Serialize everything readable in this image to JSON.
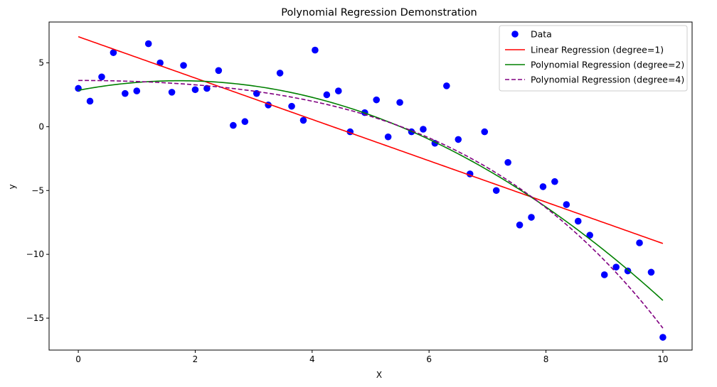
{
  "chart_data": {
    "type": "scatter+line",
    "title": "Polynomial Regression Demonstration",
    "xlabel": "X",
    "ylabel": "y",
    "xlim": [
      -0.5,
      10.5
    ],
    "ylim": [
      -17.5,
      8.2
    ],
    "xticks": [
      0,
      2,
      4,
      6,
      8,
      10
    ],
    "xtick_labels": [
      "0",
      "2",
      "4",
      "6",
      "8",
      "10"
    ],
    "yticks": [
      5,
      0,
      -5,
      -10,
      -15
    ],
    "ytick_labels": [
      "5",
      "0",
      "−5",
      "−10",
      "−15"
    ],
    "grid": false,
    "legend_position": "top-right",
    "scatter": {
      "name": "Data",
      "color": "#0000ff",
      "x": [
        0,
        0.2,
        0.4,
        0.6,
        0.8,
        1.0,
        1.2,
        1.4,
        1.6,
        1.8,
        2.0,
        2.2,
        2.4,
        2.65,
        2.85,
        3.05,
        3.25,
        3.45,
        3.65,
        3.85,
        4.05,
        4.25,
        4.45,
        4.65,
        4.9,
        5.1,
        5.3,
        5.5,
        5.7,
        5.9,
        6.1,
        6.3,
        6.5,
        6.7,
        6.95,
        7.15,
        7.35,
        7.55,
        7.75,
        7.95,
        8.15,
        8.35,
        8.55,
        8.75,
        9.0,
        9.2,
        9.4,
        9.6,
        9.8,
        10.0
      ],
      "y": [
        3.0,
        2.0,
        3.9,
        5.8,
        2.6,
        2.8,
        6.5,
        5.0,
        2.7,
        4.8,
        2.9,
        3.0,
        4.4,
        0.1,
        0.4,
        2.6,
        1.7,
        4.2,
        1.6,
        0.5,
        6.0,
        2.5,
        2.8,
        -0.4,
        1.1,
        2.1,
        -0.8,
        1.9,
        -0.4,
        -0.2,
        -1.3,
        3.2,
        -1.0,
        -3.7,
        -0.4,
        -5.0,
        -2.8,
        -7.7,
        -7.1,
        -4.7,
        -4.3,
        -6.1,
        -7.4,
        -8.5,
        -11.6,
        -11.0,
        -11.3,
        -9.1,
        -11.4,
        -16.5
      ]
    },
    "lines": [
      {
        "name": "Linear Regression (degree=1)",
        "color": "#ff0000",
        "style": "solid",
        "coef": [
          7.05,
          -1.62
        ]
      },
      {
        "name": "Polynomial Regression (degree=2)",
        "color": "#008000",
        "style": "solid",
        "coef": [
          2.85,
          0.868,
          -0.2514
        ]
      },
      {
        "name": "Polynomial Regression (degree=4)",
        "color": "#800080",
        "style": "dashed",
        "coef": [
          3.62,
          0.0,
          -0.0765,
          -0.00255,
          -0.00092
        ]
      }
    ]
  }
}
